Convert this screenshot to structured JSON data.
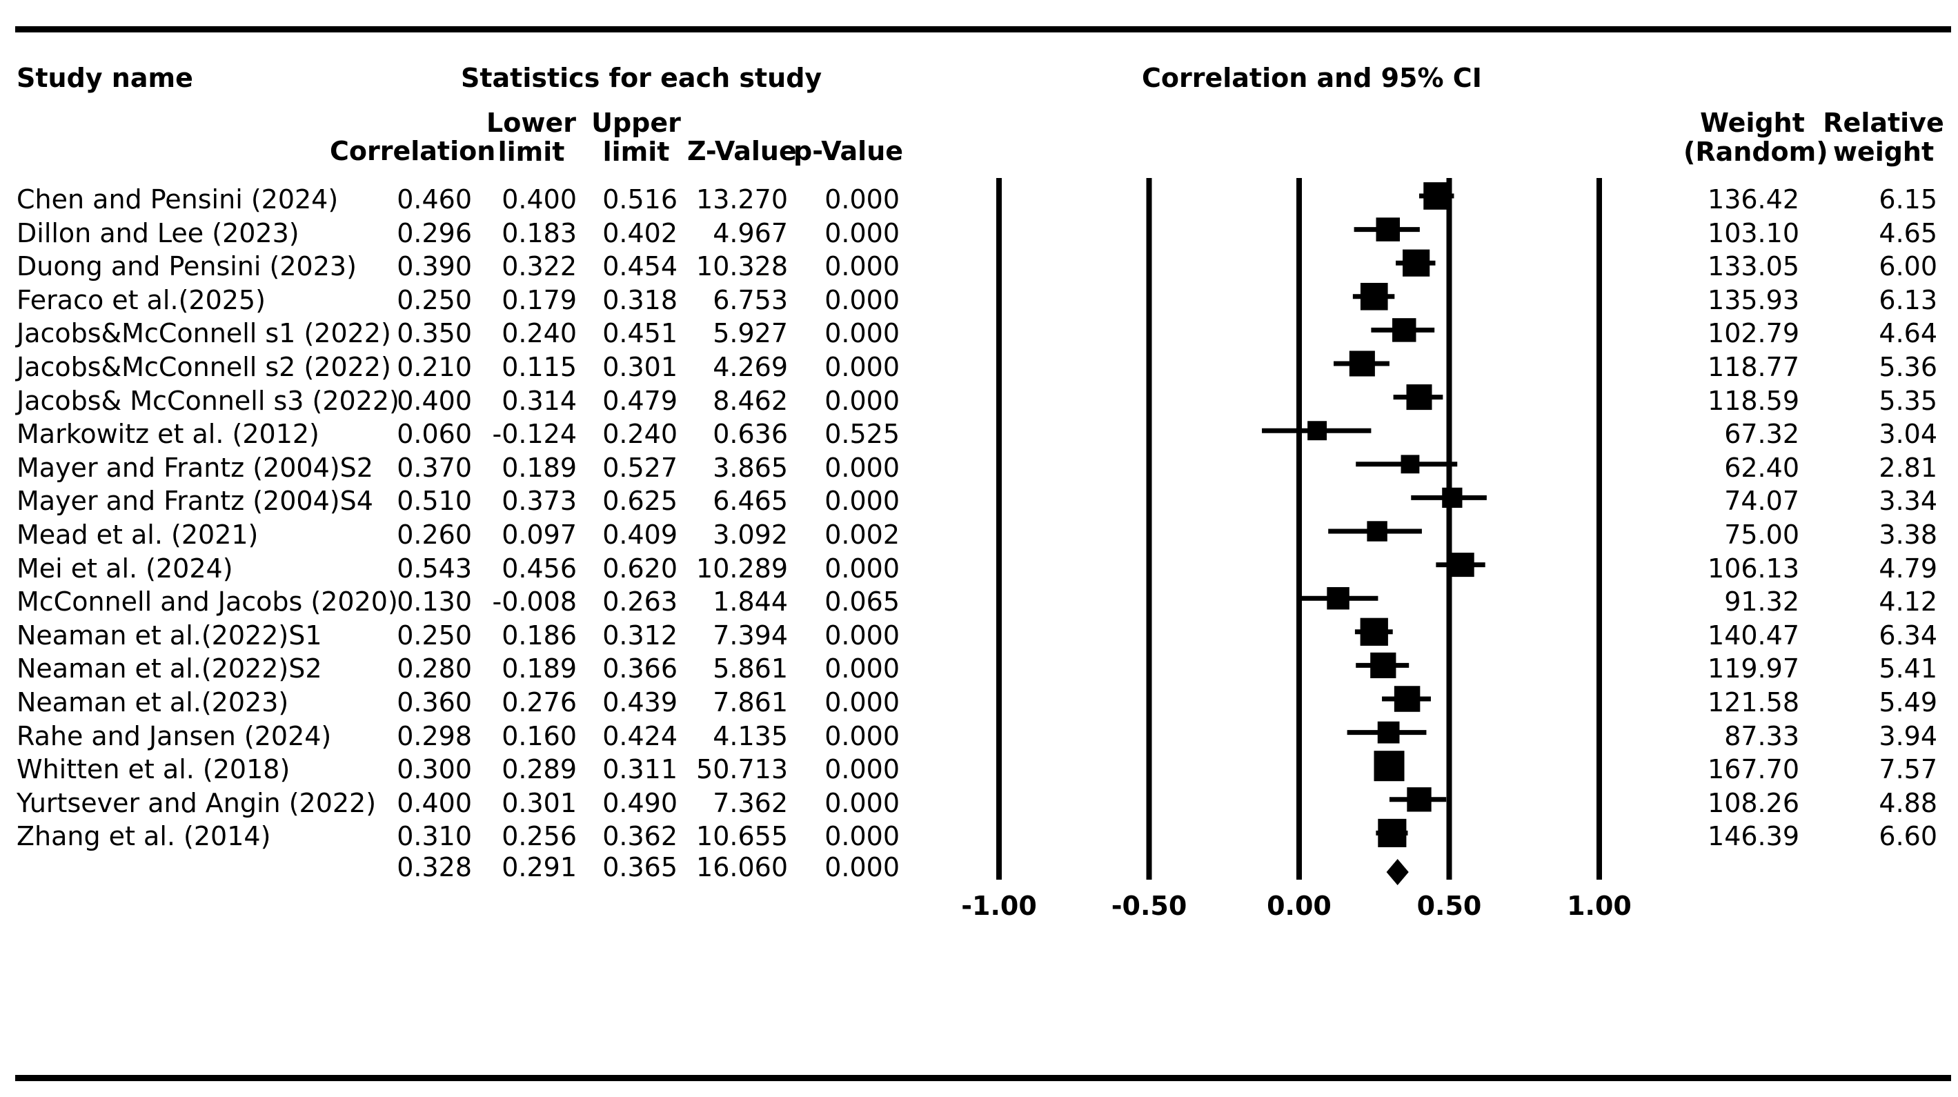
{
  "headers": {
    "study_name": "Study name",
    "stats": "Statistics for each study",
    "plot": "Correlation and 95% CI",
    "correlation": "Correlation",
    "lower": [
      "Lower",
      "limit"
    ],
    "upper": [
      "Upper",
      "limit"
    ],
    "z": "Z-Value",
    "p": "p-Value",
    "weight": [
      "Weight",
      "(Random)"
    ],
    "relweight": [
      "Relative",
      "weight"
    ]
  },
  "summary": {
    "correlation": "0.328",
    "lower": "0.291",
    "upper": "0.365",
    "z": "16.060",
    "p": "0.000"
  },
  "chart_data": {
    "type": "forest",
    "title": "Correlation and 95% CI",
    "xlim": [
      -1.0,
      1.0
    ],
    "ticks": [
      "-1.00",
      "-0.50",
      "0.00",
      "0.50",
      "1.00"
    ],
    "tick_values": [
      -1.0,
      -0.5,
      0.0,
      0.5,
      1.0
    ],
    "studies": [
      {
        "name": "Chen and Pensini (2024)",
        "r": 0.46,
        "lower": 0.4,
        "upper": 0.516,
        "r_text": "0.460",
        "lower_text": "0.400",
        "upper_text": "0.516",
        "z": "13.270",
        "p": "0.000",
        "weight": "136.42",
        "rel": "6.15",
        "rel_value": 6.15
      },
      {
        "name": "Dillon and Lee (2023)",
        "r": 0.296,
        "lower": 0.183,
        "upper": 0.402,
        "r_text": "0.296",
        "lower_text": "0.183",
        "upper_text": "0.402",
        "z": "4.967",
        "p": "0.000",
        "weight": "103.10",
        "rel": "4.65",
        "rel_value": 4.65
      },
      {
        "name": "Duong and Pensini (2023)",
        "r": 0.39,
        "lower": 0.322,
        "upper": 0.454,
        "r_text": "0.390",
        "lower_text": "0.322",
        "upper_text": "0.454",
        "z": "10.328",
        "p": "0.000",
        "weight": "133.05",
        "rel": "6.00",
        "rel_value": 6.0
      },
      {
        "name": "Feraco et al.(2025)",
        "r": 0.25,
        "lower": 0.179,
        "upper": 0.318,
        "r_text": "0.250",
        "lower_text": "0.179",
        "upper_text": "0.318",
        "z": "6.753",
        "p": "0.000",
        "weight": "135.93",
        "rel": "6.13",
        "rel_value": 6.13
      },
      {
        "name": "Jacobs&McConnell s1 (2022)",
        "r": 0.35,
        "lower": 0.24,
        "upper": 0.451,
        "r_text": "0.350",
        "lower_text": "0.240",
        "upper_text": "0.451",
        "z": "5.927",
        "p": "0.000",
        "weight": "102.79",
        "rel": "4.64",
        "rel_value": 4.64
      },
      {
        "name": "Jacobs&McConnell s2 (2022)",
        "r": 0.21,
        "lower": 0.115,
        "upper": 0.301,
        "r_text": "0.210",
        "lower_text": "0.115",
        "upper_text": "0.301",
        "z": "4.269",
        "p": "0.000",
        "weight": "118.77",
        "rel": "5.36",
        "rel_value": 5.36
      },
      {
        "name": "Jacobs& McConnell s3 (2022)",
        "r": 0.4,
        "lower": 0.314,
        "upper": 0.479,
        "r_text": "0.400",
        "lower_text": "0.314",
        "upper_text": "0.479",
        "z": "8.462",
        "p": "0.000",
        "weight": "118.59",
        "rel": "5.35",
        "rel_value": 5.35
      },
      {
        "name": "Markowitz et al. (2012)",
        "r": 0.06,
        "lower": -0.124,
        "upper": 0.24,
        "r_text": "0.060",
        "lower_text": "-0.124",
        "upper_text": "0.240",
        "z": "0.636",
        "p": "0.525",
        "weight": "67.32",
        "rel": "3.04",
        "rel_value": 3.04
      },
      {
        "name": "Mayer and Frantz (2004)S2",
        "r": 0.37,
        "lower": 0.189,
        "upper": 0.527,
        "r_text": "0.370",
        "lower_text": "0.189",
        "upper_text": "0.527",
        "z": "3.865",
        "p": "0.000",
        "weight": "62.40",
        "rel": "2.81",
        "rel_value": 2.81
      },
      {
        "name": "Mayer and Frantz (2004)S4",
        "r": 0.51,
        "lower": 0.373,
        "upper": 0.625,
        "r_text": "0.510",
        "lower_text": "0.373",
        "upper_text": "0.625",
        "z": "6.465",
        "p": "0.000",
        "weight": "74.07",
        "rel": "3.34",
        "rel_value": 3.34
      },
      {
        "name": "Mead et al. (2021)",
        "r": 0.26,
        "lower": 0.097,
        "upper": 0.409,
        "r_text": "0.260",
        "lower_text": "0.097",
        "upper_text": "0.409",
        "z": "3.092",
        "p": "0.002",
        "weight": "75.00",
        "rel": "3.38",
        "rel_value": 3.38
      },
      {
        "name": "Mei et al. (2024)",
        "r": 0.543,
        "lower": 0.456,
        "upper": 0.62,
        "r_text": "0.543",
        "lower_text": "0.456",
        "upper_text": "0.620",
        "z": "10.289",
        "p": "0.000",
        "weight": "106.13",
        "rel": "4.79",
        "rel_value": 4.79
      },
      {
        "name": "McConnell and Jacobs (2020)",
        "r": 0.13,
        "lower": -0.008,
        "upper": 0.263,
        "r_text": "0.130",
        "lower_text": "-0.008",
        "upper_text": "0.263",
        "z": "1.844",
        "p": "0.065",
        "weight": "91.32",
        "rel": "4.12",
        "rel_value": 4.12
      },
      {
        "name": "Neaman et al.(2022)S1",
        "r": 0.25,
        "lower": 0.186,
        "upper": 0.312,
        "r_text": "0.250",
        "lower_text": "0.186",
        "upper_text": "0.312",
        "z": "7.394",
        "p": "0.000",
        "weight": "140.47",
        "rel": "6.34",
        "rel_value": 6.34
      },
      {
        "name": "Neaman et al.(2022)S2",
        "r": 0.28,
        "lower": 0.189,
        "upper": 0.366,
        "r_text": "0.280",
        "lower_text": "0.189",
        "upper_text": "0.366",
        "z": "5.861",
        "p": "0.000",
        "weight": "119.97",
        "rel": "5.41",
        "rel_value": 5.41
      },
      {
        "name": "Neaman et al.(2023)",
        "r": 0.36,
        "lower": 0.276,
        "upper": 0.439,
        "r_text": "0.360",
        "lower_text": "0.276",
        "upper_text": "0.439",
        "z": "7.861",
        "p": "0.000",
        "weight": "121.58",
        "rel": "5.49",
        "rel_value": 5.49
      },
      {
        "name": "Rahe and Jansen (2024)",
        "r": 0.298,
        "lower": 0.16,
        "upper": 0.424,
        "r_text": "0.298",
        "lower_text": "0.160",
        "upper_text": "0.424",
        "z": "4.135",
        "p": "0.000",
        "weight": "87.33",
        "rel": "3.94",
        "rel_value": 3.94
      },
      {
        "name": "Whitten et al. (2018)",
        "r": 0.3,
        "lower": 0.289,
        "upper": 0.311,
        "r_text": "0.300",
        "lower_text": "0.289",
        "upper_text": "0.311",
        "z": "50.713",
        "p": "0.000",
        "weight": "167.70",
        "rel": "7.57",
        "rel_value": 7.57
      },
      {
        "name": "Yurtsever and Angin (2022)",
        "r": 0.4,
        "lower": 0.301,
        "upper": 0.49,
        "r_text": "0.400",
        "lower_text": "0.301",
        "upper_text": "0.490",
        "z": "7.362",
        "p": "0.000",
        "weight": "108.26",
        "rel": "4.88",
        "rel_value": 4.88
      },
      {
        "name": "Zhang et al. (2014)",
        "r": 0.31,
        "lower": 0.256,
        "upper": 0.362,
        "r_text": "0.310",
        "lower_text": "0.256",
        "upper_text": "0.362",
        "z": "10.655",
        "p": "0.000",
        "weight": "146.39",
        "rel": "6.60",
        "rel_value": 6.6
      }
    ],
    "pooled": {
      "r": 0.328,
      "lower": 0.291,
      "upper": 0.365
    }
  }
}
